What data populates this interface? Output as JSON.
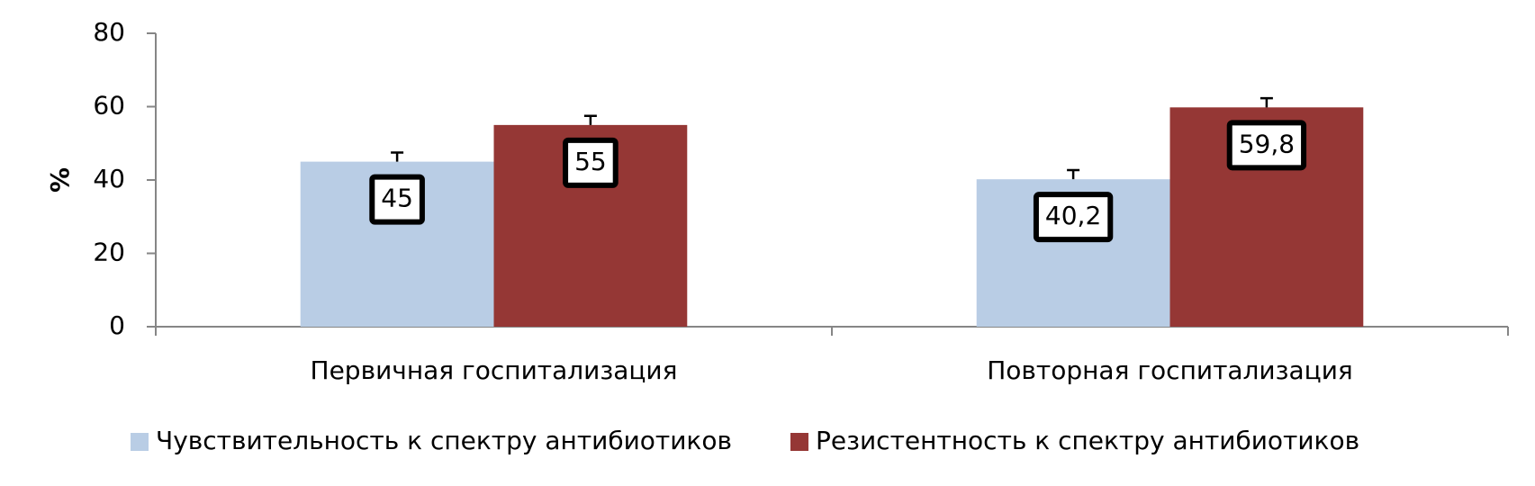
{
  "chart_data": {
    "type": "bar",
    "y_label": "%",
    "categories": [
      "Первичная госпитализация",
      "Повторная госпитализация"
    ],
    "series": [
      {
        "name": "Чувствительность к спектру антибиотиков",
        "color": "#b9cde5",
        "values": [
          45,
          40.2
        ],
        "value_labels": [
          "45",
          "40,2"
        ],
        "errors": [
          2.5,
          2.5
        ]
      },
      {
        "name": "Резистентность к спектру антибиотиков",
        "color": "#953735",
        "values": [
          55,
          59.8
        ],
        "value_labels": [
          "55",
          "59,8"
        ],
        "errors": [
          2.5,
          2.5
        ]
      }
    ],
    "ylim": [
      0,
      80
    ],
    "yticks": [
      0,
      20,
      40,
      60,
      80
    ],
    "grid": false
  }
}
